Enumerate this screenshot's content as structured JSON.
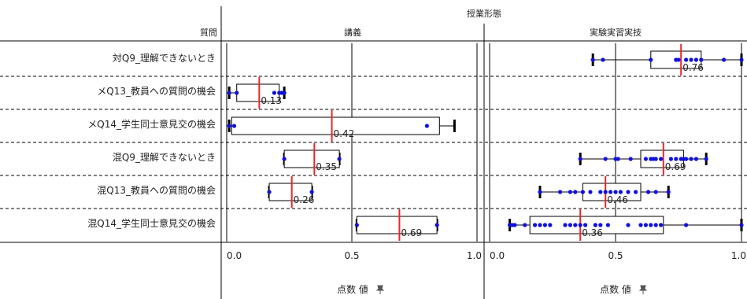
{
  "header": {
    "column_group_title": "授業形態",
    "row_header": "質問"
  },
  "axis": {
    "xlabel": "点数 値",
    "pin_icon": "pin-icon",
    "xlim": [
      0,
      1
    ],
    "ticks": [
      "0.0",
      "0.5",
      "1.0"
    ]
  },
  "colors": {
    "box_stroke": "#000000",
    "median": "#e8282a",
    "points": "#1010dd",
    "grid": "#000000"
  },
  "chart_data": {
    "type": "boxplot",
    "xlabel": "点数 値",
    "xlim": [
      0,
      1
    ],
    "columns": [
      "講義",
      "実験実習実技"
    ],
    "rows": [
      "対Q9_理解できないとき",
      "メQ13_教員への質問の機会",
      "メQ14_学生同士意見交の機会",
      "混Q9_理解できないとき",
      "混Q13_教員への質問の機会",
      "混Q14_学生同士意見交の機会"
    ],
    "panels": [
      {
        "column": "講義",
        "row": "メQ13_教員への質問の機会",
        "min": 0.01,
        "q1": 0.04,
        "median": 0.13,
        "q3": 0.21,
        "max": 0.23,
        "median_label": "0.13",
        "points": [
          0.01,
          0.04,
          0.19,
          0.21,
          0.22,
          0.23
        ]
      },
      {
        "column": "講義",
        "row": "メQ14_学生同士意見交の機会",
        "min": 0.01,
        "q1": 0.02,
        "median": 0.42,
        "q3": 0.85,
        "max": 0.91,
        "median_label": "0.42",
        "points": [
          0.01,
          0.03,
          0.8
        ]
      },
      {
        "column": "講義",
        "row": "混Q9_理解できないとき",
        "min": 0.23,
        "q1": 0.23,
        "median": 0.35,
        "q3": 0.45,
        "max": 0.45,
        "median_label": "0.35",
        "points": [
          0.23,
          0.45
        ]
      },
      {
        "column": "講義",
        "row": "混Q13_教員への質問の機会",
        "min": 0.17,
        "q1": 0.17,
        "median": 0.26,
        "q3": 0.34,
        "max": 0.34,
        "median_label": "0.26",
        "points": [
          0.17,
          0.34
        ]
      },
      {
        "column": "講義",
        "row": "混Q14_学生同士意見交の機会",
        "min": 0.52,
        "q1": 0.52,
        "median": 0.69,
        "q3": 0.84,
        "max": 0.84,
        "median_label": "0.69",
        "points": [
          0.52,
          0.84
        ]
      },
      {
        "column": "実験実習実技",
        "row": "対Q9_理解できないとき",
        "min": 0.41,
        "q1": 0.64,
        "median": 0.76,
        "q3": 0.84,
        "max": 1.0,
        "median_label": "0.76",
        "points": [
          0.41,
          0.45,
          0.64,
          0.74,
          0.75,
          0.78,
          0.8,
          0.82,
          0.84,
          0.93,
          1.0
        ]
      },
      {
        "column": "実験実習実技",
        "row": "混Q9_理解できないとき",
        "min": 0.36,
        "q1": 0.6,
        "median": 0.69,
        "q3": 0.77,
        "max": 0.86,
        "median_label": "0.69",
        "points": [
          0.36,
          0.46,
          0.5,
          0.51,
          0.56,
          0.62,
          0.64,
          0.65,
          0.66,
          0.68,
          0.72,
          0.74,
          0.76,
          0.77,
          0.78,
          0.8,
          0.82,
          0.86
        ]
      },
      {
        "column": "実験実習実技",
        "row": "混Q13_教員への質問の機会",
        "min": 0.2,
        "q1": 0.37,
        "median": 0.46,
        "q3": 0.6,
        "max": 0.71,
        "median_label": "0.46",
        "points": [
          0.2,
          0.28,
          0.32,
          0.34,
          0.37,
          0.4,
          0.44,
          0.46,
          0.48,
          0.5,
          0.52,
          0.55,
          0.58,
          0.63,
          0.66,
          0.71
        ]
      },
      {
        "column": "実験実習実技",
        "row": "混Q14_学生同士意見交の機会",
        "min": 0.08,
        "q1": 0.16,
        "median": 0.36,
        "q3": 0.69,
        "max": 1.0,
        "median_label": "0.36",
        "points": [
          0.08,
          0.09,
          0.1,
          0.14,
          0.18,
          0.2,
          0.22,
          0.24,
          0.3,
          0.32,
          0.34,
          0.36,
          0.38,
          0.42,
          0.44,
          0.47,
          0.55,
          0.6,
          0.62,
          0.64,
          0.66,
          0.68,
          0.78,
          1.0
        ]
      }
    ]
  }
}
